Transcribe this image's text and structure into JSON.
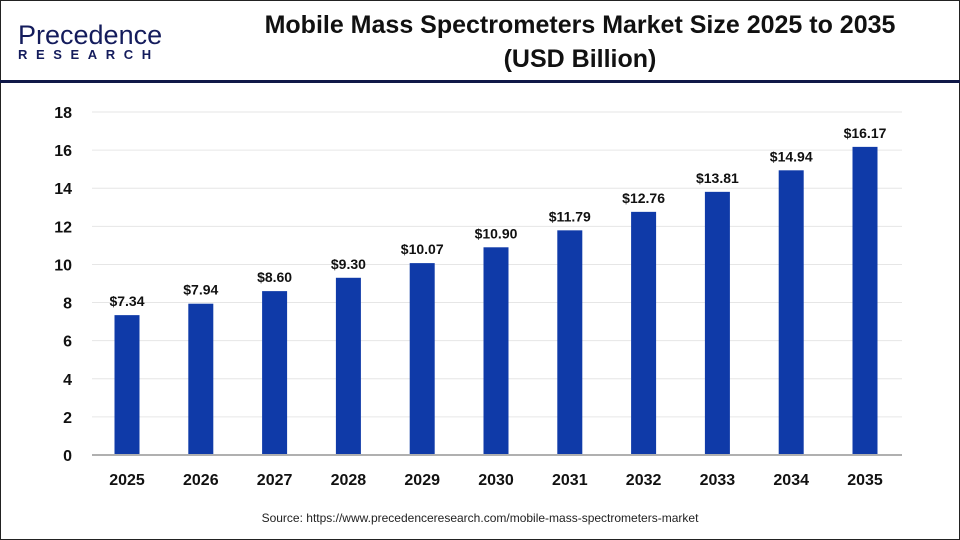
{
  "logo": {
    "text_main": "Precedence",
    "text_sub": "RESEARCH"
  },
  "title_line1": "Mobile Mass Spectrometers Market Size 2025 to 2035",
  "title_line2": "(USD Billion)",
  "source": "Source: https://www.precedenceresearch.com/mobile-mass-spectrometers-market",
  "colors": {
    "bar": "#0f3aa8",
    "grid": "#e6e6e6",
    "axis": "#b0b0b0",
    "divider": "#101848"
  },
  "chart_data": {
    "type": "bar",
    "title": "Mobile Mass Spectrometers Market Size 2025 to 2035 (USD Billion)",
    "categories": [
      "2025",
      "2026",
      "2027",
      "2028",
      "2029",
      "2030",
      "2031",
      "2032",
      "2033",
      "2034",
      "2035"
    ],
    "values": [
      7.34,
      7.94,
      8.6,
      9.3,
      10.07,
      10.9,
      11.79,
      12.76,
      13.81,
      14.94,
      16.17
    ],
    "data_labels": [
      "$7.34",
      "$7.94",
      "$8.60",
      "$9.30",
      "$10.07",
      "$10.90",
      "$11.79",
      "$12.76",
      "$13.81",
      "$14.94",
      "$16.17"
    ],
    "yticks": [
      0,
      2,
      4,
      6,
      8,
      10,
      12,
      14,
      16,
      18
    ],
    "ylim": [
      0,
      18
    ],
    "grid": true,
    "xlabel": "",
    "ylabel": ""
  }
}
